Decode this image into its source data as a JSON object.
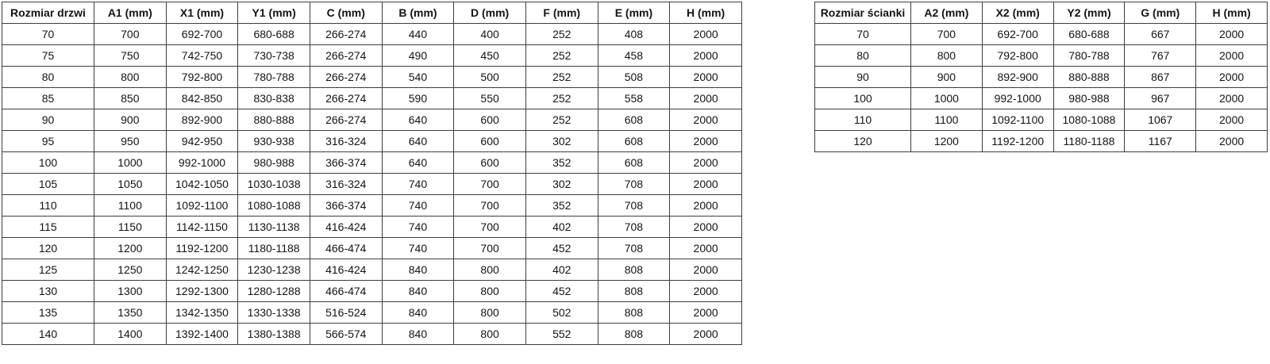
{
  "door_table": {
    "columns": [
      "Rozmiar drzwi",
      "A1 (mm)",
      "X1 (mm)",
      "Y1 (mm)",
      "C (mm)",
      "B (mm)",
      "D (mm)",
      "F (mm)",
      "E (mm)",
      "H (mm)"
    ],
    "rows": [
      [
        "70",
        "700",
        "692-700",
        "680-688",
        "266-274",
        "440",
        "400",
        "252",
        "408",
        "2000"
      ],
      [
        "75",
        "750",
        "742-750",
        "730-738",
        "266-274",
        "490",
        "450",
        "252",
        "458",
        "2000"
      ],
      [
        "80",
        "800",
        "792-800",
        "780-788",
        "266-274",
        "540",
        "500",
        "252",
        "508",
        "2000"
      ],
      [
        "85",
        "850",
        "842-850",
        "830-838",
        "266-274",
        "590",
        "550",
        "252",
        "558",
        "2000"
      ],
      [
        "90",
        "900",
        "892-900",
        "880-888",
        "266-274",
        "640",
        "600",
        "252",
        "608",
        "2000"
      ],
      [
        "95",
        "950",
        "942-950",
        "930-938",
        "316-324",
        "640",
        "600",
        "302",
        "608",
        "2000"
      ],
      [
        "100",
        "1000",
        "992-1000",
        "980-988",
        "366-374",
        "640",
        "600",
        "352",
        "608",
        "2000"
      ],
      [
        "105",
        "1050",
        "1042-1050",
        "1030-1038",
        "316-324",
        "740",
        "700",
        "302",
        "708",
        "2000"
      ],
      [
        "110",
        "1100",
        "1092-1100",
        "1080-1088",
        "366-374",
        "740",
        "700",
        "352",
        "708",
        "2000"
      ],
      [
        "115",
        "1150",
        "1142-1150",
        "1130-1138",
        "416-424",
        "740",
        "700",
        "402",
        "708",
        "2000"
      ],
      [
        "120",
        "1200",
        "1192-1200",
        "1180-1188",
        "466-474",
        "740",
        "700",
        "452",
        "708",
        "2000"
      ],
      [
        "125",
        "1250",
        "1242-1250",
        "1230-1238",
        "416-424",
        "840",
        "800",
        "402",
        "808",
        "2000"
      ],
      [
        "130",
        "1300",
        "1292-1300",
        "1280-1288",
        "466-474",
        "840",
        "800",
        "452",
        "808",
        "2000"
      ],
      [
        "135",
        "1350",
        "1342-1350",
        "1330-1338",
        "516-524",
        "840",
        "800",
        "502",
        "808",
        "2000"
      ],
      [
        "140",
        "1400",
        "1392-1400",
        "1380-1388",
        "566-574",
        "840",
        "800",
        "552",
        "808",
        "2000"
      ]
    ]
  },
  "wall_table": {
    "columns": [
      "Rozmiar ścianki",
      "A2 (mm)",
      "X2 (mm)",
      "Y2 (mm)",
      "G (mm)",
      "H (mm)"
    ],
    "rows": [
      [
        "70",
        "700",
        "692-700",
        "680-688",
        "667",
        "2000"
      ],
      [
        "80",
        "800",
        "792-800",
        "780-788",
        "767",
        "2000"
      ],
      [
        "90",
        "900",
        "892-900",
        "880-888",
        "867",
        "2000"
      ],
      [
        "100",
        "1000",
        "992-1000",
        "980-988",
        "967",
        "2000"
      ],
      [
        "110",
        "1100",
        "1092-1100",
        "1080-1088",
        "1067",
        "2000"
      ],
      [
        "120",
        "1200",
        "1192-1200",
        "1180-1188",
        "1167",
        "2000"
      ]
    ]
  }
}
